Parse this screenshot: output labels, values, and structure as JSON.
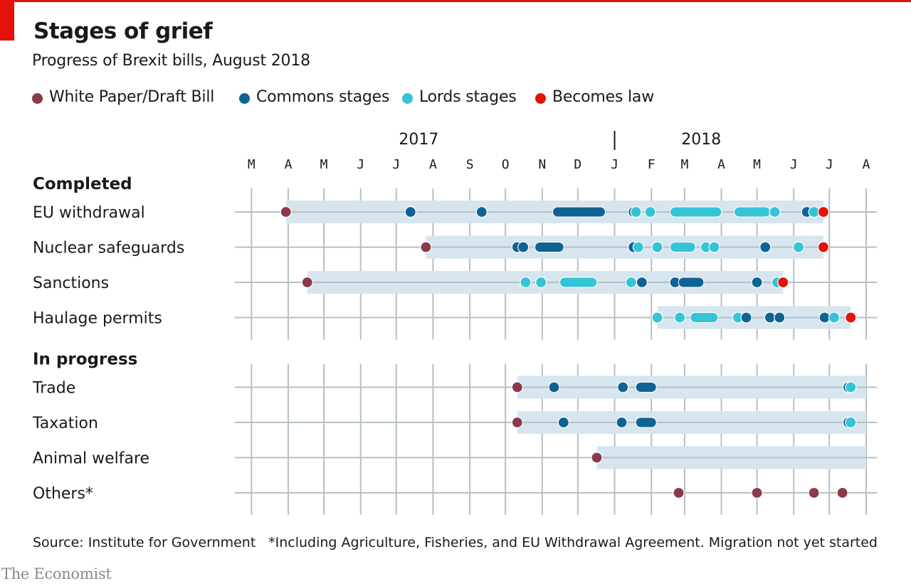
{
  "header": {
    "title": "Stages of grief",
    "subtitle": "Progress of Brexit bills, August 2018"
  },
  "colors": {
    "accent": "#e3120b",
    "draft": "#8b3a4a",
    "commons": "#0e6393",
    "lords": "#35c3d6",
    "law": "#e3120b",
    "band": "#d7e5ef",
    "track": "#b6bfc6"
  },
  "footer": {
    "source": "Source: Institute for Government",
    "footnote": "*Including Agriculture, Fisheries, and EU Withdrawal Agreement. Migration not yet started",
    "brand": "The Economist"
  },
  "chart_data": {
    "type": "timeline",
    "x_axis": {
      "start": "2017-02-15",
      "end": "2018-08-10",
      "years": [
        {
          "label": "2017",
          "date": "2017-07-20"
        },
        {
          "label": "2018",
          "date": "2018-03-15"
        }
      ],
      "year_divider": "2018-01-01",
      "months": [
        {
          "label": "M",
          "date": "2017-03-01"
        },
        {
          "label": "A",
          "date": "2017-04-01"
        },
        {
          "label": "M",
          "date": "2017-05-01"
        },
        {
          "label": "J",
          "date": "2017-06-01"
        },
        {
          "label": "J",
          "date": "2017-07-01"
        },
        {
          "label": "A",
          "date": "2017-08-01"
        },
        {
          "label": "S",
          "date": "2017-09-01"
        },
        {
          "label": "O",
          "date": "2017-10-01"
        },
        {
          "label": "N",
          "date": "2017-11-01"
        },
        {
          "label": "D",
          "date": "2017-12-01"
        },
        {
          "label": "J",
          "date": "2018-01-01"
        },
        {
          "label": "F",
          "date": "2018-02-01"
        },
        {
          "label": "M",
          "date": "2018-03-01"
        },
        {
          "label": "A",
          "date": "2018-04-01"
        },
        {
          "label": "M",
          "date": "2018-05-01"
        },
        {
          "label": "J",
          "date": "2018-06-01"
        },
        {
          "label": "J",
          "date": "2018-07-01"
        },
        {
          "label": "A",
          "date": "2018-08-01"
        }
      ]
    },
    "legend": [
      {
        "key": "draft",
        "label": "White Paper/Draft Bill"
      },
      {
        "key": "commons",
        "label": "Commons stages"
      },
      {
        "key": "lords",
        "label": "Lords stages"
      },
      {
        "key": "law",
        "label": "Becomes law"
      }
    ],
    "groups": [
      {
        "label": "Completed",
        "rows": [
          {
            "name": "EU withdrawal",
            "span": [
              "2017-03-30",
              "2018-06-26"
            ],
            "events": [
              {
                "type": "draft",
                "date": "2017-03-30"
              },
              {
                "type": "commons",
                "date": "2017-07-13"
              },
              {
                "type": "commons",
                "date": "2017-09-11"
              },
              {
                "type": "commons",
                "date": "2017-11-14",
                "end": "2017-12-20"
              },
              {
                "type": "commons",
                "date": "2018-01-17"
              },
              {
                "type": "lords",
                "date": "2018-01-19"
              },
              {
                "type": "lords",
                "date": "2018-01-31"
              },
              {
                "type": "lords",
                "date": "2018-02-21",
                "end": "2018-03-28"
              },
              {
                "type": "lords",
                "date": "2018-04-16",
                "end": "2018-05-08"
              },
              {
                "type": "lords",
                "date": "2018-05-16"
              },
              {
                "type": "commons",
                "date": "2018-06-12"
              },
              {
                "type": "lords",
                "date": "2018-06-18"
              },
              {
                "type": "law",
                "date": "2018-06-26"
              }
            ]
          },
          {
            "name": "Nuclear safeguards",
            "span": [
              "2017-07-26",
              "2018-06-26"
            ],
            "events": [
              {
                "type": "draft",
                "date": "2017-07-26"
              },
              {
                "type": "commons",
                "date": "2017-10-11"
              },
              {
                "type": "commons",
                "date": "2017-10-16"
              },
              {
                "type": "commons",
                "date": "2017-10-30",
                "end": "2017-11-15"
              },
              {
                "type": "commons",
                "date": "2018-01-17"
              },
              {
                "type": "lords",
                "date": "2018-01-21"
              },
              {
                "type": "lords",
                "date": "2018-02-06"
              },
              {
                "type": "lords",
                "date": "2018-02-21",
                "end": "2018-03-06"
              },
              {
                "type": "lords",
                "date": "2018-03-19"
              },
              {
                "type": "lords",
                "date": "2018-03-26"
              },
              {
                "type": "commons",
                "date": "2018-05-08"
              },
              {
                "type": "lords",
                "date": "2018-06-05"
              },
              {
                "type": "law",
                "date": "2018-06-26"
              }
            ]
          },
          {
            "name": "Sanctions",
            "span": [
              "2017-04-17",
              "2018-05-23"
            ],
            "events": [
              {
                "type": "draft",
                "date": "2017-04-17"
              },
              {
                "type": "lords",
                "date": "2017-10-18"
              },
              {
                "type": "lords",
                "date": "2017-10-31"
              },
              {
                "type": "lords",
                "date": "2017-11-20",
                "end": "2017-12-13"
              },
              {
                "type": "lords",
                "date": "2018-01-15"
              },
              {
                "type": "commons",
                "date": "2018-01-24"
              },
              {
                "type": "commons",
                "date": "2018-02-21"
              },
              {
                "type": "commons",
                "date": "2018-02-28",
                "end": "2018-03-13"
              },
              {
                "type": "commons",
                "date": "2018-05-01"
              },
              {
                "type": "lords",
                "date": "2018-05-18"
              },
              {
                "type": "law",
                "date": "2018-05-23"
              }
            ]
          },
          {
            "name": "Haulage permits",
            "span": [
              "2018-02-06",
              "2018-07-19"
            ],
            "events": [
              {
                "type": "lords",
                "date": "2018-02-06"
              },
              {
                "type": "lords",
                "date": "2018-02-25"
              },
              {
                "type": "lords",
                "date": "2018-03-10",
                "end": "2018-03-25"
              },
              {
                "type": "lords",
                "date": "2018-04-15"
              },
              {
                "type": "commons",
                "date": "2018-04-22"
              },
              {
                "type": "commons",
                "date": "2018-05-12"
              },
              {
                "type": "commons",
                "date": "2018-05-20"
              },
              {
                "type": "commons",
                "date": "2018-06-27"
              },
              {
                "type": "lords",
                "date": "2018-07-05"
              },
              {
                "type": "law",
                "date": "2018-07-19"
              }
            ]
          }
        ]
      },
      {
        "label": "In progress",
        "rows": [
          {
            "name": "Trade",
            "span": [
              "2017-10-11",
              "2018-08-01"
            ],
            "events": [
              {
                "type": "draft",
                "date": "2017-10-11"
              },
              {
                "type": "commons",
                "date": "2017-11-11"
              },
              {
                "type": "commons",
                "date": "2018-01-08"
              },
              {
                "type": "commons",
                "date": "2018-01-23",
                "end": "2018-02-01"
              },
              {
                "type": "commons",
                "date": "2018-07-17"
              },
              {
                "type": "lords",
                "date": "2018-07-19"
              }
            ]
          },
          {
            "name": "Taxation",
            "span": [
              "2017-10-11",
              "2018-08-01"
            ],
            "events": [
              {
                "type": "draft",
                "date": "2017-10-11"
              },
              {
                "type": "commons",
                "date": "2017-11-19"
              },
              {
                "type": "commons",
                "date": "2018-01-07"
              },
              {
                "type": "commons",
                "date": "2018-01-23",
                "end": "2018-02-01"
              },
              {
                "type": "commons",
                "date": "2018-07-17"
              },
              {
                "type": "lords",
                "date": "2018-07-19"
              }
            ]
          },
          {
            "name": "Animal welfare",
            "span": [
              "2017-12-17",
              "2018-08-01"
            ],
            "events": [
              {
                "type": "draft",
                "date": "2017-12-17"
              }
            ]
          },
          {
            "name": "Others*",
            "events": [
              {
                "type": "draft",
                "date": "2018-02-24"
              },
              {
                "type": "draft",
                "date": "2018-05-01"
              },
              {
                "type": "draft",
                "date": "2018-06-18"
              },
              {
                "type": "draft",
                "date": "2018-07-12"
              }
            ]
          }
        ]
      }
    ]
  }
}
